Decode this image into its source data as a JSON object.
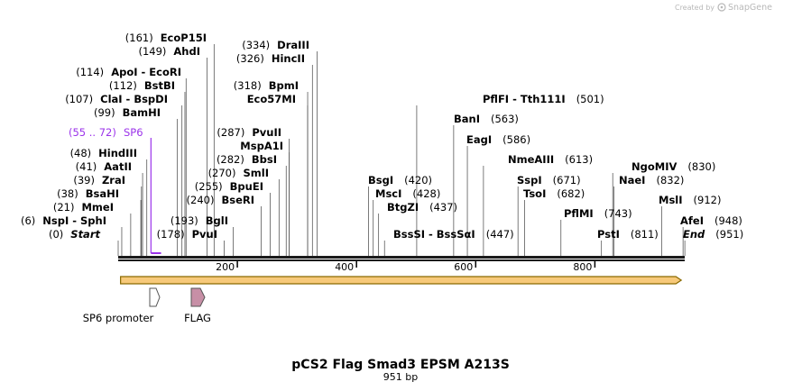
{
  "branding": {
    "created_by": "Created by",
    "app_name": "SnapGene",
    "logo_icon": "snapgene-logo-icon",
    "color": "#b8b8b8"
  },
  "plasmid": {
    "name": "pCS2 Flag Smad3 EPSM A213S",
    "length_label": "951 bp",
    "length_bp": 951
  },
  "ruler": {
    "ticks": [
      200,
      400,
      600,
      800
    ]
  },
  "primer": {
    "name": "SP6",
    "range": "(55 .. 72)",
    "color": "#9b33ea",
    "start_bp": 55,
    "end_bp": 72
  },
  "orf": {
    "start_bp": 4,
    "end_bp": 945,
    "color": "#f7c97a",
    "stroke": "#8a6a00"
  },
  "features": [
    {
      "name": "SP6 promoter",
      "start_bp": 53,
      "end_bp": 71,
      "color": "#ffffff"
    },
    {
      "name": "FLAG",
      "start_bp": 127,
      "end_bp": 150,
      "color": "#c78fa6"
    }
  ],
  "sites": [
    {
      "pos": "(0)",
      "name": "Start",
      "bp": 0,
      "italic": true
    },
    {
      "pos": "(6)",
      "name": "NspI  -  SphI",
      "bp": 6
    },
    {
      "pos": "(21)",
      "name": "MmeI",
      "bp": 21
    },
    {
      "pos": "(38)",
      "name": "BsaHI",
      "bp": 38
    },
    {
      "pos": "(39)",
      "name": "ZraI",
      "bp": 39
    },
    {
      "pos": "(41)",
      "name": "AatII",
      "bp": 41
    },
    {
      "pos": "(48)",
      "name": "HindIII",
      "bp": 48
    },
    {
      "pos": "(99)",
      "name": "BamHI",
      "bp": 99
    },
    {
      "pos": "(107)",
      "name": "ClaI  -  BspDI",
      "bp": 107
    },
    {
      "pos": "(112)",
      "name": "BstBI",
      "bp": 112
    },
    {
      "pos": "(114)",
      "name": "ApoI  -  EcoRI",
      "bp": 114
    },
    {
      "pos": "(149)",
      "name": "AhdI",
      "bp": 149
    },
    {
      "pos": "(161)",
      "name": "EcoP15I",
      "bp": 161
    },
    {
      "pos": "(178)",
      "name": "PvuI",
      "bp": 178
    },
    {
      "pos": "(193)",
      "name": "BglI",
      "bp": 193
    },
    {
      "pos": "(240)",
      "name": "BseRI",
      "bp": 240
    },
    {
      "pos": "(255)",
      "name": "BpuEI",
      "bp": 255
    },
    {
      "pos": "(270)",
      "name": "SmlI",
      "bp": 270
    },
    {
      "pos": "(282)",
      "name": "BbsI",
      "bp": 282
    },
    {
      "pos": "",
      "name": "MspA1I",
      "bp": 287
    },
    {
      "pos": "(287)",
      "name": "PvuII",
      "bp": 287
    },
    {
      "pos": "",
      "name": "Eco57MI",
      "bp": 318
    },
    {
      "pos": "(318)",
      "name": "BpmI",
      "bp": 318
    },
    {
      "pos": "(326)",
      "name": "HincII",
      "bp": 326
    },
    {
      "pos": "(334)",
      "name": "DraIII",
      "bp": 334
    },
    {
      "pos": "(420)",
      "name": "BsgI",
      "bp": 420
    },
    {
      "pos": "(428)",
      "name": "MscI",
      "bp": 428
    },
    {
      "pos": "(437)",
      "name": "BtgZI",
      "bp": 437
    },
    {
      "pos": "(447)",
      "name": "BssSI  -  BssSαI",
      "bp": 447
    },
    {
      "pos": "(501)",
      "name": "PflFI  -  Tth111I",
      "bp": 501
    },
    {
      "pos": "(563)",
      "name": "BanI",
      "bp": 563
    },
    {
      "pos": "(586)",
      "name": "EagI",
      "bp": 586
    },
    {
      "pos": "(613)",
      "name": "NmeAIII",
      "bp": 613
    },
    {
      "pos": "(671)",
      "name": "SspI",
      "bp": 671
    },
    {
      "pos": "(682)",
      "name": "TsoI",
      "bp": 682
    },
    {
      "pos": "(743)",
      "name": "PflMI",
      "bp": 743
    },
    {
      "pos": "(811)",
      "name": "PstI",
      "bp": 811
    },
    {
      "pos": "(830)",
      "name": "NgoMIV",
      "bp": 830
    },
    {
      "pos": "(832)",
      "name": "NaeI",
      "bp": 832
    },
    {
      "pos": "(912)",
      "name": "MslI",
      "bp": 912
    },
    {
      "pos": "(948)",
      "name": "AfeI",
      "bp": 948
    },
    {
      "pos": "(951)",
      "name": "End",
      "bp": 951,
      "italic": true
    }
  ]
}
